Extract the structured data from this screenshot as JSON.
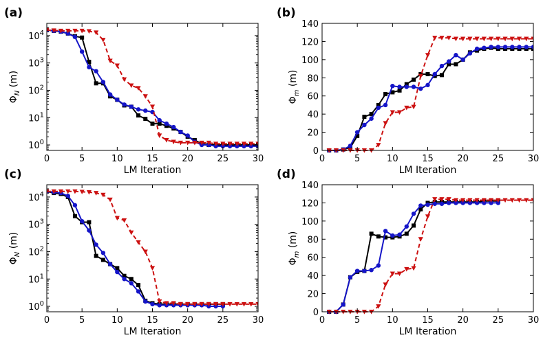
{
  "chart_data": [
    {
      "panel": "(a)",
      "type": "line",
      "yscale": "log",
      "xlabel": "LM Iteration",
      "ylabel": "Φ_N (m)",
      "ylabel_main": "Φ",
      "ylabel_sub": "N",
      "ylabel_rest": " (m)",
      "xlim": [
        0,
        30
      ],
      "ylim_exp": [
        -0.2,
        4.45
      ],
      "xticks": [
        0,
        5,
        10,
        15,
        20,
        25,
        30
      ],
      "xtick_labels": [
        "0",
        "5",
        "10",
        "15",
        "20",
        "25",
        "30"
      ],
      "ytick_exps": [
        0,
        1,
        2,
        3,
        4
      ],
      "ytick_base": "10",
      "ytick_sups": [
        "0",
        "1",
        "2",
        "3",
        "4"
      ],
      "series": [
        {
          "name": "black-square",
          "color": "#000000",
          "marker": "square",
          "dashed": false,
          "x": [
            0,
            1,
            2,
            3,
            4,
            5,
            6,
            7,
            8,
            9,
            10,
            11,
            12,
            13,
            14,
            15,
            16,
            17,
            18,
            19,
            20,
            21,
            22,
            23,
            24,
            25,
            26,
            27,
            28,
            29,
            30
          ],
          "y": [
            16000,
            15000,
            14000,
            12000,
            9500,
            8500,
            1100,
            180,
            180,
            60,
            45,
            28,
            25,
            12,
            9,
            6,
            6,
            5,
            4,
            3,
            2,
            1.5,
            1.1,
            1.0,
            1.0,
            1.0,
            1.0,
            1.0,
            1.0,
            1.0,
            1.0
          ]
        },
        {
          "name": "blue-circle",
          "color": "#1515c8",
          "marker": "circle",
          "dashed": false,
          "x": [
            0,
            1,
            2,
            3,
            4,
            5,
            6,
            7,
            8,
            9,
            10,
            11,
            12,
            13,
            14,
            15,
            16,
            17,
            18,
            19,
            20,
            21,
            22,
            23,
            24,
            25,
            26,
            27,
            28,
            29,
            30
          ],
          "y": [
            16000,
            15000,
            14000,
            12000,
            9000,
            2600,
            700,
            500,
            200,
            70,
            45,
            30,
            25,
            20,
            18,
            16,
            8,
            6,
            4.5,
            3,
            2.2,
            1.3,
            1.0,
            1.0,
            0.9,
            0.9,
            0.9,
            0.9,
            0.9,
            0.9,
            0.9
          ]
        },
        {
          "name": "red-triangle",
          "color": "#cc1111",
          "marker": "triangle-down",
          "dashed": true,
          "x": [
            0,
            1,
            2,
            3,
            4,
            5,
            6,
            7,
            8,
            9,
            10,
            11,
            12,
            13,
            14,
            15,
            16,
            17,
            18,
            19,
            20,
            21,
            22,
            23,
            24,
            25,
            26,
            27,
            28,
            29,
            30
          ],
          "y": [
            16000,
            15500,
            15000,
            15000,
            15000,
            15000,
            14500,
            13000,
            7000,
            1200,
            800,
            250,
            150,
            120,
            60,
            25,
            2.2,
            1.5,
            1.3,
            1.2,
            1.2,
            1.2,
            1.2,
            1.2,
            1.1,
            1.1,
            1.1,
            1.1,
            1.1,
            1.1,
            1.1
          ]
        }
      ]
    },
    {
      "panel": "(b)",
      "type": "line",
      "yscale": "linear",
      "xlabel": "LM Iteration",
      "ylabel": "Φ_m (m)",
      "ylabel_main": "Φ",
      "ylabel_sub": "m",
      "ylabel_rest": " (m)",
      "xlim": [
        0,
        30
      ],
      "ylim": [
        0,
        140
      ],
      "xticks": [
        0,
        5,
        10,
        15,
        20,
        25,
        30
      ],
      "xtick_labels": [
        "0",
        "5",
        "10",
        "15",
        "20",
        "25",
        "30"
      ],
      "yticks": [
        0,
        20,
        40,
        60,
        80,
        100,
        120,
        140
      ],
      "ytick_labels": [
        "0",
        "20",
        "40",
        "60",
        "80",
        "100",
        "120",
        "140"
      ],
      "series": [
        {
          "name": "black-square",
          "color": "#000000",
          "marker": "square",
          "dashed": false,
          "x": [
            1,
            2,
            3,
            4,
            5,
            6,
            7,
            8,
            9,
            10,
            11,
            12,
            13,
            14,
            15,
            16,
            17,
            18,
            19,
            20,
            21,
            22,
            23,
            24,
            25,
            26,
            27,
            28,
            29,
            30
          ],
          "y": [
            0,
            0,
            1,
            3,
            16,
            37,
            40,
            50,
            62,
            64,
            66,
            73,
            78,
            84,
            84,
            82,
            83,
            95,
            95,
            100,
            108,
            110,
            112,
            113,
            112,
            112,
            112,
            112,
            112,
            112
          ]
        },
        {
          "name": "blue-circle",
          "color": "#1515c8",
          "marker": "circle",
          "dashed": false,
          "x": [
            1,
            2,
            3,
            4,
            5,
            6,
            7,
            8,
            9,
            10,
            11,
            12,
            13,
            14,
            15,
            16,
            17,
            18,
            19,
            20,
            21,
            22,
            23,
            24,
            25,
            26,
            27,
            28,
            29,
            30
          ],
          "y": [
            0,
            0,
            1,
            5,
            20,
            28,
            35,
            47,
            50,
            71,
            70,
            70,
            70,
            68,
            72,
            84,
            93,
            98,
            105,
            100,
            107,
            112,
            113,
            114,
            114,
            114,
            114,
            114,
            114,
            114
          ]
        },
        {
          "name": "red-triangle",
          "color": "#cc1111",
          "marker": "triangle-down",
          "dashed": true,
          "x": [
            1,
            2,
            3,
            4,
            5,
            6,
            7,
            8,
            9,
            10,
            11,
            12,
            13,
            14,
            15,
            16,
            17,
            18,
            19,
            20,
            21,
            22,
            23,
            24,
            25,
            26,
            27,
            28,
            29,
            30
          ],
          "y": [
            0,
            0,
            0,
            0,
            0,
            0,
            0,
            6,
            30,
            42,
            42,
            47,
            48,
            82,
            105,
            124,
            124,
            124,
            123,
            123,
            123,
            123,
            123,
            123,
            123,
            123,
            123,
            123,
            123,
            123
          ]
        }
      ]
    },
    {
      "panel": "(c)",
      "type": "line",
      "yscale": "log",
      "xlabel": "LM Iteration",
      "ylabel": "Φ_N (m)",
      "ylabel_main": "Φ",
      "ylabel_sub": "N",
      "ylabel_rest": " (m)",
      "xlim": [
        0,
        30
      ],
      "ylim_exp": [
        -0.2,
        4.45
      ],
      "xticks": [
        0,
        5,
        10,
        15,
        20,
        25,
        30
      ],
      "xtick_labels": [
        "0",
        "5",
        "10",
        "15",
        "20",
        "25",
        "30"
      ],
      "ytick_exps": [
        0,
        1,
        2,
        3,
        4
      ],
      "ytick_base": "10",
      "ytick_sups": [
        "0",
        "1",
        "2",
        "3",
        "4"
      ],
      "series": [
        {
          "name": "black-square",
          "color": "#000000",
          "marker": "square",
          "dashed": false,
          "x": [
            0,
            1,
            2,
            3,
            4,
            5,
            6,
            7,
            8,
            9,
            10,
            11,
            12,
            13,
            14,
            15,
            16,
            17,
            18,
            19,
            20,
            21,
            22,
            23,
            24,
            25
          ],
          "y": [
            16000,
            14000,
            13000,
            10000,
            2000,
            1200,
            1200,
            70,
            50,
            35,
            25,
            13,
            10,
            6,
            1.6,
            1.3,
            1.2,
            1.2,
            1.2,
            1.2,
            1.2,
            1.2,
            1.2,
            1.2,
            1.2,
            1.2
          ]
        },
        {
          "name": "blue-circle",
          "color": "#1515c8",
          "marker": "circle",
          "dashed": false,
          "x": [
            0,
            1,
            2,
            3,
            4,
            5,
            6,
            7,
            8,
            9,
            10,
            11,
            12,
            13,
            14,
            15,
            16,
            17,
            18,
            19,
            20,
            21,
            22,
            23,
            24,
            25
          ],
          "y": [
            16000,
            15000,
            14000,
            11000,
            5000,
            1300,
            600,
            180,
            90,
            35,
            18,
            10,
            7,
            3.5,
            1.5,
            1.2,
            1.1,
            1.1,
            1.1,
            1.1,
            1.1,
            1.1,
            1.1,
            1.0,
            1.0,
            1.0
          ]
        },
        {
          "name": "red-triangle",
          "color": "#cc1111",
          "marker": "triangle-down",
          "dashed": true,
          "x": [
            0,
            1,
            2,
            3,
            4,
            5,
            6,
            7,
            8,
            9,
            10,
            11,
            12,
            13,
            14,
            15,
            16,
            17,
            18,
            19,
            20,
            21,
            22,
            23,
            24,
            25,
            26,
            27,
            28,
            29,
            30
          ],
          "y": [
            16000,
            16000,
            16000,
            16000,
            16000,
            15500,
            15000,
            14000,
            12000,
            8000,
            1700,
            1400,
            500,
            220,
            100,
            25,
            1.5,
            1.3,
            1.3,
            1.2,
            1.2,
            1.2,
            1.2,
            1.2,
            1.2,
            1.2,
            1.2,
            1.2,
            1.2,
            1.2,
            1.2
          ]
        }
      ]
    },
    {
      "panel": "(d)",
      "type": "line",
      "yscale": "linear",
      "xlabel": "LM Iteration",
      "ylabel": "Φ_m (m)",
      "ylabel_main": "Φ",
      "ylabel_sub": "m",
      "ylabel_rest": " (m)",
      "xlim": [
        0,
        30
      ],
      "ylim": [
        0,
        140
      ],
      "xticks": [
        0,
        5,
        10,
        15,
        20,
        25,
        30
      ],
      "xtick_labels": [
        "0",
        "5",
        "10",
        "15",
        "20",
        "25",
        "30"
      ],
      "yticks": [
        0,
        20,
        40,
        60,
        80,
        100,
        120,
        140
      ],
      "ytick_labels": [
        "0",
        "20",
        "40",
        "60",
        "80",
        "100",
        "120",
        "140"
      ],
      "series": [
        {
          "name": "black-square",
          "color": "#000000",
          "marker": "square",
          "dashed": false,
          "x": [
            1,
            2,
            3,
            4,
            5,
            6,
            7,
            8,
            9,
            10,
            11,
            12,
            13,
            14,
            15,
            16,
            17,
            18,
            19,
            20,
            21,
            22,
            23,
            24,
            25
          ],
          "y": [
            0,
            0,
            8,
            38,
            44,
            45,
            86,
            83,
            82,
            82,
            83,
            86,
            95,
            113,
            120,
            121,
            121,
            121,
            121,
            121,
            121,
            121,
            122,
            122,
            122
          ]
        },
        {
          "name": "blue-circle",
          "color": "#1515c8",
          "marker": "circle",
          "dashed": false,
          "x": [
            1,
            2,
            3,
            4,
            5,
            6,
            7,
            8,
            9,
            10,
            11,
            12,
            13,
            14,
            15,
            16,
            17,
            18,
            19,
            20,
            21,
            22,
            23,
            24,
            25
          ],
          "y": [
            0,
            0,
            8,
            38,
            45,
            45,
            46,
            51,
            89,
            84,
            85,
            94,
            108,
            117,
            118,
            119,
            119,
            120,
            120,
            120,
            120,
            120,
            120,
            120,
            120
          ]
        },
        {
          "name": "red-triangle",
          "color": "#cc1111",
          "marker": "triangle-down",
          "dashed": true,
          "x": [
            1,
            2,
            3,
            4,
            5,
            6,
            7,
            8,
            9,
            10,
            11,
            12,
            13,
            14,
            15,
            16,
            17,
            18,
            19,
            20,
            21,
            22,
            23,
            24,
            25,
            26,
            27,
            28,
            29,
            30
          ],
          "y": [
            0,
            0,
            0,
            0,
            0,
            0,
            0,
            6,
            30,
            42,
            42,
            47,
            48,
            80,
            105,
            124,
            124,
            124,
            123,
            123,
            123,
            123,
            123,
            123,
            123,
            123,
            123,
            123,
            123,
            123
          ]
        }
      ]
    }
  ]
}
